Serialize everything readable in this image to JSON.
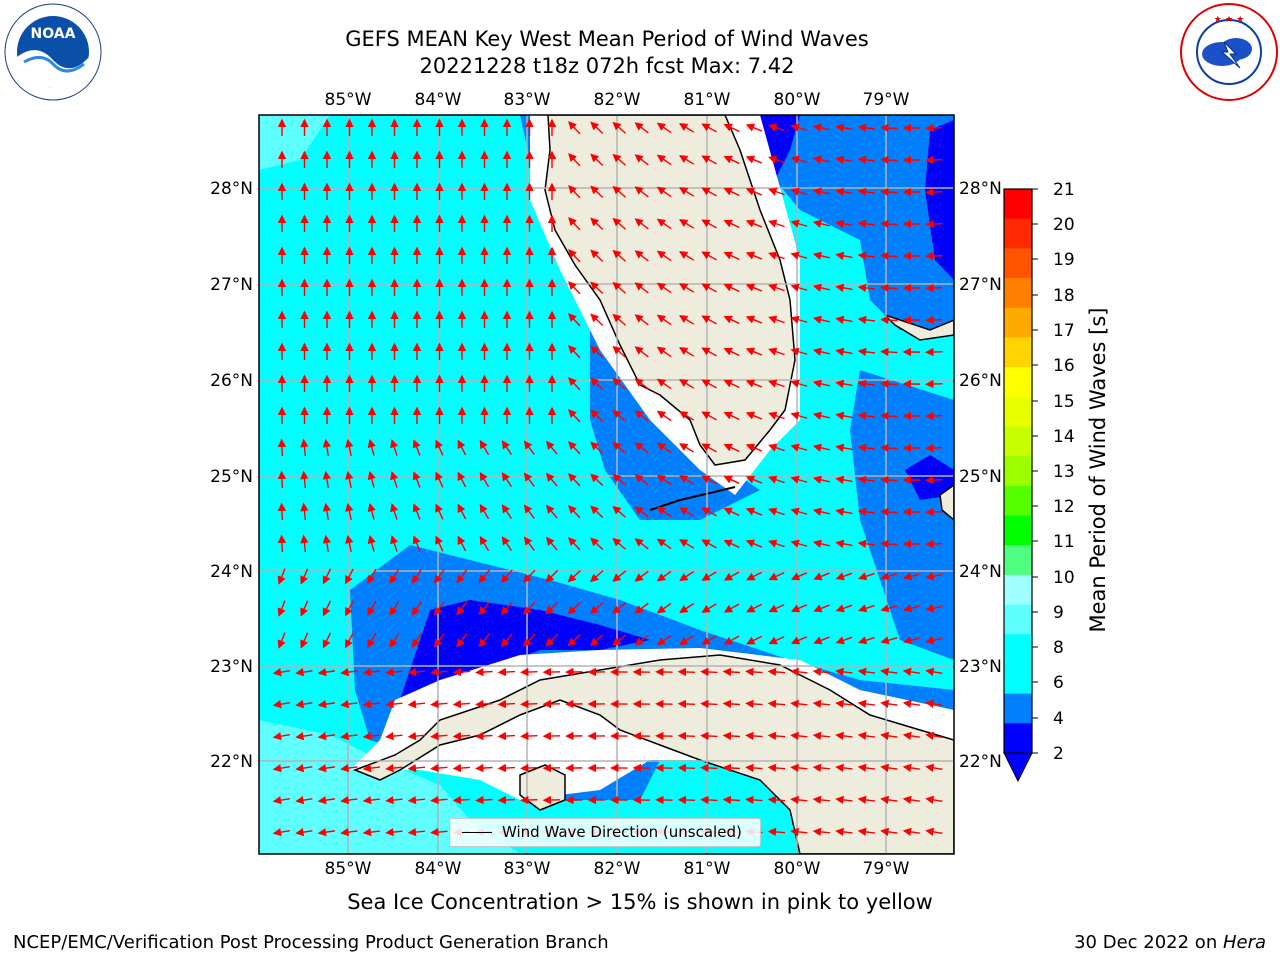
{
  "title_line1": "GEFS MEAN Key West Mean Period of Wind Waves",
  "title_line2": "20221228 t18z 072h fcst   Max: 7.42",
  "logos": {
    "left": "noaa-logo",
    "left_text": "NOAA",
    "right": "nws-logo"
  },
  "map": {
    "lon_labels": [
      "85°W",
      "84°W",
      "83°W",
      "82°W",
      "81°W",
      "80°W",
      "79°W"
    ],
    "lat_labels": [
      "28°N",
      "27°N",
      "26°N",
      "25°N",
      "24°N",
      "23°N",
      "22°N"
    ],
    "legend_label": "Wind Wave Direction (unscaled)",
    "colors": {
      "land": "#eeecdc",
      "ocean_light": "#00ffff",
      "ocean_mid": "#0080ff",
      "ocean_dark": "#0000ff",
      "arrow": "#ff0000"
    }
  },
  "colorbar": {
    "label": "Mean Period of Wind Waves [s]",
    "ticks": [
      "21",
      "20",
      "19",
      "18",
      "17",
      "16",
      "15",
      "14",
      "13",
      "12",
      "11",
      "10",
      "9",
      "8",
      "6",
      "4",
      "2"
    ],
    "colors": [
      "#ff0000",
      "#ff2a00",
      "#ff5500",
      "#ff7f00",
      "#ffaa00",
      "#ffd400",
      "#ffff00",
      "#e8ff00",
      "#c8ff00",
      "#9cff00",
      "#55ff00",
      "#00ff00",
      "#50ff80",
      "#a0ffff",
      "#60ffff",
      "#00ffff",
      "#00ffff",
      "#0080ff",
      "#0000ff"
    ]
  },
  "ice_note": "Sea Ice Concentration > 15% is shown in pink to yellow",
  "footer": {
    "left": "NCEP/EMC/Verification Post Processing Product Generation Branch",
    "right_prefix": "30 Dec 2022 on ",
    "right_host": "Hera"
  }
}
